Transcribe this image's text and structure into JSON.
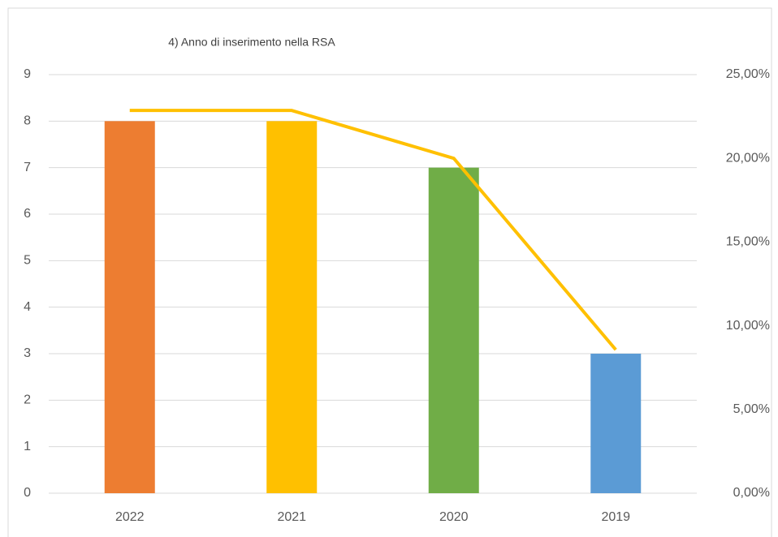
{
  "chart_data": {
    "type": "bar",
    "title": "4) Anno di inserimento nella RSA",
    "categories": [
      "2022",
      "2021",
      "2020",
      "2019"
    ],
    "series": [
      {
        "type": "bar",
        "colors": [
          "#ed7d31",
          "#ffc000",
          "#70ad47",
          "#5b9bd5"
        ],
        "values": [
          8,
          8,
          7,
          3
        ]
      },
      {
        "type": "line",
        "axis": "y2",
        "color": "#ffc000",
        "values": [
          22.86,
          22.86,
          20,
          8.57
        ]
      }
    ],
    "ylim": [
      0,
      9
    ],
    "yticks": [
      0,
      1,
      2,
      3,
      4,
      5,
      6,
      7,
      8,
      9
    ],
    "y2lim": [
      0,
      25
    ],
    "y2ticks": [
      {
        "value": 0,
        "label": "0,00%"
      },
      {
        "value": 5,
        "label": "5,00%"
      },
      {
        "value": 10,
        "label": "10,00%"
      },
      {
        "value": 15,
        "label": "15,00%"
      },
      {
        "value": 20,
        "label": "20,00%"
      },
      {
        "value": 25,
        "label": "25,00%"
      }
    ],
    "grid": true
  }
}
